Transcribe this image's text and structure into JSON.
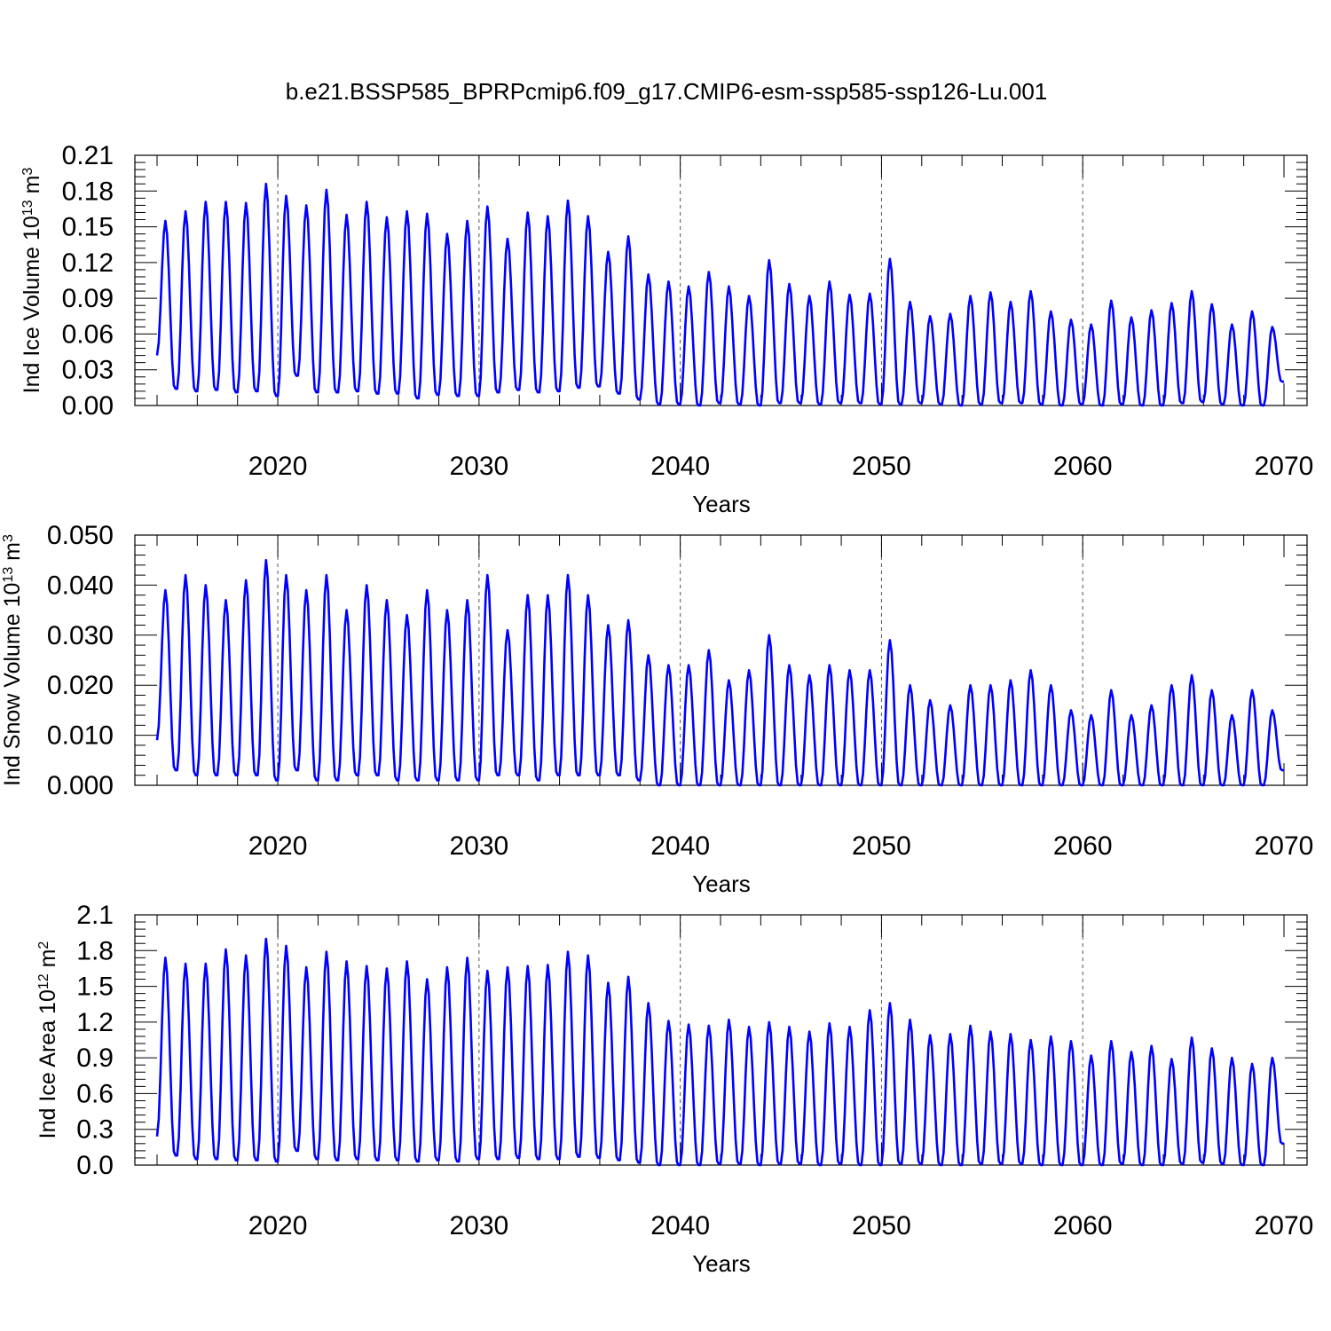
{
  "title": "b.e21.BSSP585_BPRPcmip6.f09_g17.CMIP6-esm-ssp585-ssp126-Lu.001",
  "chart_data": [
    {
      "type": "line",
      "ylabel": "Ind Ice Volume 10",
      "ylabel_exp": "13",
      "ylabel_unit": " m",
      "ylabel_unit_exp": "3",
      "xlabel": "Years",
      "ylim": [
        0,
        0.21
      ],
      "xlim": [
        2014,
        2070
      ],
      "yticks": [
        "0.00",
        "0.03",
        "0.06",
        "0.09",
        "0.12",
        "0.15",
        "0.18",
        "0.21"
      ],
      "xticks": [
        "2020",
        "2030",
        "2040",
        "2050",
        "2060",
        "2070"
      ],
      "series_name": "Ind Ice Volume",
      "line_color": "#0000ff",
      "start_year": 2014,
      "peaks": [
        0.155,
        0.163,
        0.171,
        0.171,
        0.17,
        0.186,
        0.176,
        0.168,
        0.181,
        0.16,
        0.171,
        0.158,
        0.163,
        0.161,
        0.144,
        0.155,
        0.167,
        0.14,
        0.162,
        0.159,
        0.172,
        0.159,
        0.129,
        0.142,
        0.11,
        0.104,
        0.1,
        0.112,
        0.1,
        0.092,
        0.122,
        0.102,
        0.092,
        0.104,
        0.093,
        0.094,
        0.123,
        0.087,
        0.075,
        0.077,
        0.092,
        0.095,
        0.087,
        0.096,
        0.079,
        0.072,
        0.068,
        0.088,
        0.074,
        0.08,
        0.086,
        0.096,
        0.085,
        0.068,
        0.079,
        0.066
      ],
      "troughs": [
        0.014,
        0.012,
        0.013,
        0.011,
        0.012,
        0.008,
        0.025,
        0.011,
        0.011,
        0.012,
        0.01,
        0.01,
        0.006,
        0.009,
        0.008,
        0.008,
        0.011,
        0.013,
        0.011,
        0.012,
        0.015,
        0.016,
        0.01,
        0.005,
        0.001,
        0.001,
        0.0,
        0.002,
        0.001,
        0.0,
        0.002,
        0.002,
        0.001,
        0.002,
        0.002,
        0.001,
        0.001,
        0.002,
        0.001,
        0.0,
        0.001,
        0.002,
        0.002,
        0.001,
        0.0,
        0.001,
        0.0,
        0.001,
        0.0,
        0.0,
        0.002,
        0.003,
        0.001,
        0.0,
        0.0,
        0.02
      ]
    },
    {
      "type": "line",
      "ylabel": "Ind Snow Volume 10",
      "ylabel_exp": "13",
      "ylabel_unit": " m",
      "ylabel_unit_exp": "3",
      "xlabel": "Years",
      "ylim": [
        0,
        0.05
      ],
      "xlim": [
        2014,
        2070
      ],
      "yticks": [
        "0.000",
        "0.010",
        "0.020",
        "0.030",
        "0.040",
        "0.050"
      ],
      "xticks": [
        "2020",
        "2030",
        "2040",
        "2050",
        "2060",
        "2070"
      ],
      "series_name": "Ind Snow Volume",
      "line_color": "#0000ff",
      "start_year": 2014,
      "peaks": [
        0.039,
        0.042,
        0.04,
        0.037,
        0.041,
        0.045,
        0.042,
        0.039,
        0.042,
        0.035,
        0.04,
        0.037,
        0.034,
        0.039,
        0.035,
        0.037,
        0.042,
        0.031,
        0.038,
        0.038,
        0.042,
        0.038,
        0.032,
        0.033,
        0.026,
        0.024,
        0.024,
        0.027,
        0.021,
        0.023,
        0.03,
        0.024,
        0.022,
        0.024,
        0.023,
        0.023,
        0.029,
        0.02,
        0.017,
        0.016,
        0.02,
        0.02,
        0.021,
        0.023,
        0.02,
        0.015,
        0.014,
        0.019,
        0.014,
        0.016,
        0.02,
        0.022,
        0.019,
        0.014,
        0.019,
        0.015
      ],
      "troughs": [
        0.003,
        0.002,
        0.002,
        0.002,
        0.002,
        0.001,
        0.003,
        0.001,
        0.001,
        0.002,
        0.002,
        0.001,
        0.001,
        0.001,
        0.001,
        0.001,
        0.002,
        0.002,
        0.001,
        0.002,
        0.002,
        0.002,
        0.002,
        0.001,
        0.0,
        0.0,
        0.0,
        0.0,
        0.0,
        0.0,
        0.0,
        0.0,
        0.0,
        0.0,
        0.0,
        0.0,
        0.0,
        0.0,
        0.0,
        0.0,
        0.0,
        0.0,
        0.0,
        0.0,
        0.0,
        0.0,
        0.0,
        0.0,
        0.0,
        0.0,
        0.0,
        0.0,
        0.0,
        0.0,
        0.0,
        0.003
      ]
    },
    {
      "type": "line",
      "ylabel": "Ind Ice Area 10",
      "ylabel_exp": "12",
      "ylabel_unit": " m",
      "ylabel_unit_exp": "2",
      "xlabel": "Years",
      "ylim": [
        0,
        2.1
      ],
      "xlim": [
        2014,
        2070
      ],
      "yticks": [
        "0.0",
        "0.3",
        "0.6",
        "0.9",
        "1.2",
        "1.5",
        "1.8",
        "2.1"
      ],
      "xticks": [
        "2020",
        "2030",
        "2040",
        "2050",
        "2060",
        "2070"
      ],
      "series_name": "Ind Ice Area",
      "line_color": "#0000ff",
      "start_year": 2014,
      "peaks": [
        1.74,
        1.69,
        1.69,
        1.81,
        1.76,
        1.9,
        1.84,
        1.66,
        1.79,
        1.71,
        1.67,
        1.65,
        1.71,
        1.56,
        1.66,
        1.74,
        1.63,
        1.66,
        1.67,
        1.68,
        1.79,
        1.76,
        1.53,
        1.58,
        1.36,
        1.21,
        1.18,
        1.17,
        1.22,
        1.16,
        1.2,
        1.16,
        1.12,
        1.19,
        1.16,
        1.3,
        1.36,
        1.22,
        1.09,
        1.1,
        1.17,
        1.12,
        1.1,
        1.05,
        1.08,
        1.04,
        0.92,
        1.04,
        0.95,
        1.0,
        0.89,
        1.07,
        0.98,
        0.9,
        0.85,
        0.9
      ],
      "troughs": [
        0.08,
        0.05,
        0.05,
        0.04,
        0.04,
        0.03,
        0.12,
        0.05,
        0.04,
        0.05,
        0.04,
        0.04,
        0.03,
        0.04,
        0.03,
        0.05,
        0.05,
        0.06,
        0.05,
        0.05,
        0.07,
        0.06,
        0.04,
        0.02,
        0.0,
        0.0,
        0.0,
        0.01,
        0.01,
        0.0,
        0.01,
        0.01,
        0.0,
        0.01,
        0.0,
        0.0,
        0.01,
        0.01,
        0.0,
        0.0,
        0.01,
        0.01,
        0.01,
        0.0,
        0.0,
        0.0,
        0.0,
        0.01,
        0.0,
        0.0,
        0.01,
        0.02,
        0.01,
        0.0,
        0.0,
        0.18
      ]
    }
  ]
}
